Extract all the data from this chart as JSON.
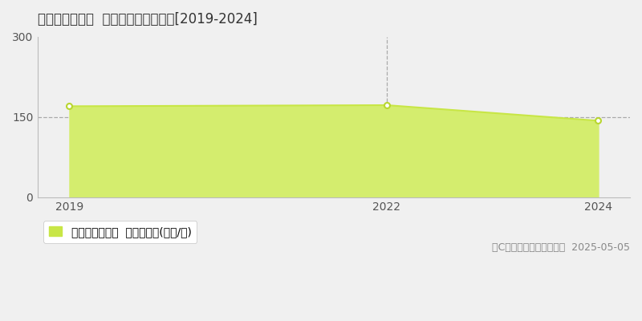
{
  "title": "堺市堺区榎元町  マンション価格推移[2019-2024]",
  "years": [
    2019,
    2022,
    2024
  ],
  "values": [
    170,
    172,
    143
  ],
  "line_color": "#c8e646",
  "fill_color": "#d4ed6e",
  "fill_alpha": 1.0,
  "marker_color": "white",
  "marker_edgecolor": "#b8d630",
  "ylim": [
    0,
    300
  ],
  "yticks": [
    0,
    150,
    300
  ],
  "xlim_left": 2018.7,
  "xlim_right": 2024.3,
  "xticks": [
    2019,
    2022,
    2024
  ],
  "vline_x": 2022,
  "hline_y": 150,
  "legend_label": "マンション価格  平均坪単価(万円/坪)",
  "legend_color": "#c8e646",
  "copyright_text": "（C）土地価格ドットコム  2025-05-05",
  "bg_color": "#f0f0f0",
  "plot_bg_color": "#f0f0f0",
  "title_fontsize": 12,
  "axis_fontsize": 10,
  "legend_fontsize": 10,
  "copyright_fontsize": 9
}
